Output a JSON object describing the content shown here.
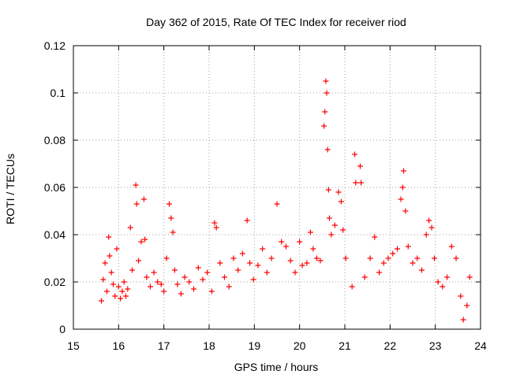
{
  "chart_data": {
    "type": "scatter",
    "title": "Day 362 of 2015, Rate Of TEC Index for receiver riod",
    "xlabel": "GPS time / hours",
    "ylabel": "ROTI / TECUs",
    "xlim": [
      15,
      24
    ],
    "ylim": [
      0,
      0.12
    ],
    "x_ticks": [
      "15",
      "16",
      "17",
      "18",
      "19",
      "20",
      "21",
      "22",
      "23",
      "24"
    ],
    "y_ticks": [
      "0",
      "0.02",
      "0.04",
      "0.06",
      "0.08",
      "0.1",
      "0.12"
    ],
    "grid": true,
    "marker": "+",
    "color": "#ff0000",
    "series": [
      {
        "name": "ROTI",
        "points": [
          [
            15.62,
            0.012
          ],
          [
            15.66,
            0.021
          ],
          [
            15.7,
            0.028
          ],
          [
            15.74,
            0.016
          ],
          [
            15.78,
            0.039
          ],
          [
            15.8,
            0.031
          ],
          [
            15.84,
            0.024
          ],
          [
            15.88,
            0.019
          ],
          [
            15.92,
            0.014
          ],
          [
            15.96,
            0.034
          ],
          [
            16.0,
            0.018
          ],
          [
            16.04,
            0.013
          ],
          [
            16.08,
            0.016
          ],
          [
            16.12,
            0.02
          ],
          [
            16.16,
            0.014
          ],
          [
            16.2,
            0.017
          ],
          [
            16.26,
            0.043
          ],
          [
            16.3,
            0.025
          ],
          [
            16.38,
            0.061
          ],
          [
            16.4,
            0.053
          ],
          [
            16.44,
            0.029
          ],
          [
            16.5,
            0.037
          ],
          [
            16.56,
            0.055
          ],
          [
            16.58,
            0.038
          ],
          [
            16.62,
            0.022
          ],
          [
            16.7,
            0.018
          ],
          [
            16.78,
            0.024
          ],
          [
            16.86,
            0.02
          ],
          [
            16.94,
            0.019
          ],
          [
            17.0,
            0.016
          ],
          [
            17.06,
            0.03
          ],
          [
            17.12,
            0.053
          ],
          [
            17.16,
            0.047
          ],
          [
            17.2,
            0.041
          ],
          [
            17.24,
            0.025
          ],
          [
            17.3,
            0.019
          ],
          [
            17.38,
            0.015
          ],
          [
            17.46,
            0.022
          ],
          [
            17.56,
            0.02
          ],
          [
            17.66,
            0.017
          ],
          [
            17.76,
            0.026
          ],
          [
            17.86,
            0.021
          ],
          [
            17.96,
            0.024
          ],
          [
            18.06,
            0.016
          ],
          [
            18.12,
            0.045
          ],
          [
            18.16,
            0.043
          ],
          [
            18.24,
            0.028
          ],
          [
            18.34,
            0.022
          ],
          [
            18.44,
            0.018
          ],
          [
            18.54,
            0.03
          ],
          [
            18.64,
            0.025
          ],
          [
            18.74,
            0.032
          ],
          [
            18.84,
            0.046
          ],
          [
            18.9,
            0.028
          ],
          [
            18.98,
            0.021
          ],
          [
            19.08,
            0.027
          ],
          [
            19.18,
            0.034
          ],
          [
            19.28,
            0.024
          ],
          [
            19.38,
            0.03
          ],
          [
            19.5,
            0.053
          ],
          [
            19.6,
            0.037
          ],
          [
            19.7,
            0.035
          ],
          [
            19.8,
            0.029
          ],
          [
            19.9,
            0.024
          ],
          [
            20.0,
            0.037
          ],
          [
            20.06,
            0.027
          ],
          [
            20.16,
            0.028
          ],
          [
            20.24,
            0.041
          ],
          [
            20.3,
            0.034
          ],
          [
            20.38,
            0.03
          ],
          [
            20.46,
            0.029
          ],
          [
            20.54,
            0.086
          ],
          [
            20.56,
            0.092
          ],
          [
            20.58,
            0.105
          ],
          [
            20.6,
            0.1
          ],
          [
            20.62,
            0.076
          ],
          [
            20.64,
            0.059
          ],
          [
            20.66,
            0.047
          ],
          [
            20.7,
            0.04
          ],
          [
            20.78,
            0.044
          ],
          [
            20.86,
            0.058
          ],
          [
            20.92,
            0.054
          ],
          [
            20.96,
            0.042
          ],
          [
            21.02,
            0.03
          ],
          [
            21.16,
            0.018
          ],
          [
            21.22,
            0.074
          ],
          [
            21.24,
            0.062
          ],
          [
            21.34,
            0.069
          ],
          [
            21.36,
            0.062
          ],
          [
            21.44,
            0.022
          ],
          [
            21.56,
            0.03
          ],
          [
            21.66,
            0.039
          ],
          [
            21.76,
            0.024
          ],
          [
            21.86,
            0.028
          ],
          [
            21.96,
            0.03
          ],
          [
            22.06,
            0.032
          ],
          [
            22.16,
            0.034
          ],
          [
            22.24,
            0.055
          ],
          [
            22.28,
            0.06
          ],
          [
            22.3,
            0.067
          ],
          [
            22.34,
            0.05
          ],
          [
            22.4,
            0.035
          ],
          [
            22.5,
            0.028
          ],
          [
            22.6,
            0.03
          ],
          [
            22.7,
            0.025
          ],
          [
            22.8,
            0.04
          ],
          [
            22.86,
            0.046
          ],
          [
            22.92,
            0.043
          ],
          [
            22.98,
            0.03
          ],
          [
            23.06,
            0.02
          ],
          [
            23.16,
            0.018
          ],
          [
            23.26,
            0.022
          ],
          [
            23.36,
            0.035
          ],
          [
            23.46,
            0.03
          ],
          [
            23.56,
            0.014
          ],
          [
            23.62,
            0.004
          ],
          [
            23.7,
            0.01
          ],
          [
            23.76,
            0.022
          ]
        ]
      }
    ]
  }
}
